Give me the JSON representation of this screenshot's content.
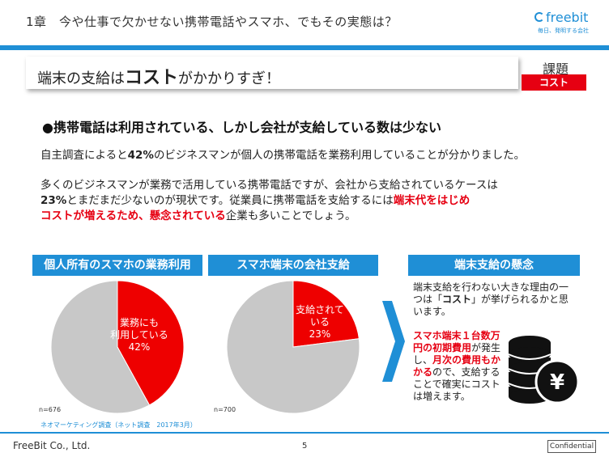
{
  "header": {
    "chapter_title": "1章　今や仕事で欠かせない携帯電話やスマホ、でもその実態は？",
    "logo_text": "freebit",
    "logo_tagline": "毎日、発明する会社"
  },
  "title": {
    "prefix": "端末の支給は",
    "emphasis": "コスト",
    "suffix": "がかかりすぎ！"
  },
  "issue": {
    "label": "課題",
    "badge": "コスト",
    "badge_color": "#e60012"
  },
  "bullet": "●携帯電話は利用されている、しかし会社が支給している数は少ない",
  "para1": {
    "a": "自主調査によると",
    "b": "42%",
    "c": "のビジネスマンが個人の携帯電話を業務利用していることが分かりました。"
  },
  "para2": {
    "line1": "多くのビジネスマンが業務で活用している携帯電話ですが、会社から支給されているケースは",
    "l2_bold": "23%",
    "l2_text": "とまだまだ少ないのが現状です。従業員に携帯電話を支給するには",
    "l2_red": "端末代をはじめ",
    "l3_red": "コストが増えるため、懸念されている",
    "l3_text": "企業も多いことでしょう。"
  },
  "chart_data": [
    {
      "type": "pie",
      "title": "個人所有のスマホの業務利用",
      "slices": [
        {
          "label": "業務にも利用している",
          "value": 42,
          "color": "#ee0000"
        },
        {
          "label": "",
          "value": 58,
          "color": "#c8c8c8"
        }
      ],
      "label_lines": [
        "業務にも",
        "利用している",
        "42%"
      ],
      "n": "n=676"
    },
    {
      "type": "pie",
      "title": "スマホ端末の会社支給",
      "slices": [
        {
          "label": "支給されている",
          "value": 23,
          "color": "#ee0000"
        },
        {
          "label": "",
          "value": 77,
          "color": "#c8c8c8"
        }
      ],
      "label_lines": [
        "支給されて",
        "いる",
        "23%"
      ],
      "n": "n=700"
    }
  ],
  "concern": {
    "title": "端末支給の懸念",
    "text_a": "端末支給を行わない大きな理由の一つは「",
    "text_b": "コスト",
    "text_c": "」が挙げられるかと思います。",
    "red1": "スマホ端末１台数万円の初期費用",
    "text_d": "が発生し、",
    "red2": "月次の費用もかかる",
    "text_e": "ので、支給することで確実にコストは増えます。"
  },
  "source": "ネオマーケティング調査（ネット調査　2017年3月）",
  "footer": {
    "company": "FreeBit Co., Ltd.",
    "page": "5",
    "confidential": "Confidential"
  },
  "colors": {
    "accent": "#1f8fd6",
    "red": "#e60012",
    "gray": "#c8c8c8"
  }
}
